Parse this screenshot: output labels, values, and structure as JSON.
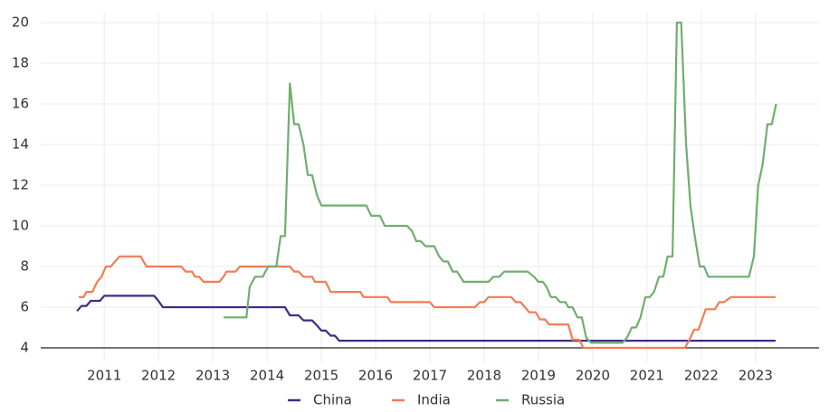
{
  "chart_data": {
    "type": "line",
    "xlim": [
      2010.33,
      2024.67
    ],
    "ylim": [
      3.3,
      20.5
    ],
    "yticks": [
      4,
      6,
      8,
      10,
      12,
      14,
      16,
      18,
      20
    ],
    "xticks": [
      {
        "value": 2011.5,
        "label": "2011"
      },
      {
        "value": 2012.5,
        "label": "2012"
      },
      {
        "value": 2013.5,
        "label": "2013"
      },
      {
        "value": 2014.5,
        "label": "2014"
      },
      {
        "value": 2015.5,
        "label": "2015"
      },
      {
        "value": 2016.5,
        "label": "2016"
      },
      {
        "value": 2017.5,
        "label": "2017"
      },
      {
        "value": 2018.5,
        "label": "2018"
      },
      {
        "value": 2019.5,
        "label": "2019"
      },
      {
        "value": 2020.5,
        "label": "2020"
      },
      {
        "value": 2021.5,
        "label": "2021"
      },
      {
        "value": 2022.5,
        "label": "2022"
      },
      {
        "value": 2023.5,
        "label": "2023"
      }
    ],
    "grid": true,
    "hline": 4,
    "legend": "bottom",
    "series": [
      {
        "name": "China",
        "color": "#3f2d85",
        "x": [
          2011.0,
          2011.08,
          2011.17,
          2011.25,
          2011.42,
          2011.5,
          2012.42,
          2012.5,
          2012.58,
          2014.83,
          2014.92,
          2015.08,
          2015.17,
          2015.33,
          2015.42,
          2015.5,
          2015.58,
          2015.67,
          2015.75,
          2015.83,
          2023.87
        ],
        "values": [
          5.81,
          6.06,
          6.06,
          6.31,
          6.31,
          6.56,
          6.56,
          6.31,
          6.0,
          6.0,
          5.6,
          5.6,
          5.35,
          5.35,
          5.1,
          4.85,
          4.85,
          4.6,
          4.6,
          4.35,
          4.35
        ]
      },
      {
        "name": "India",
        "color": "#f47c52",
        "x": [
          2011.03,
          2011.12,
          2011.17,
          2011.28,
          2011.37,
          2011.45,
          2011.53,
          2011.62,
          2011.7,
          2011.78,
          2012.17,
          2012.28,
          2012.92,
          2013.0,
          2013.12,
          2013.17,
          2013.25,
          2013.33,
          2013.62,
          2013.7,
          2013.75,
          2013.92,
          2014.0,
          2014.92,
          2015.0,
          2015.08,
          2015.17,
          2015.33,
          2015.38,
          2015.58,
          2015.67,
          2016.22,
          2016.28,
          2016.72,
          2016.78,
          2017.5,
          2017.58,
          2018.33,
          2018.42,
          2018.5,
          2018.58,
          2019.0,
          2019.08,
          2019.17,
          2019.25,
          2019.33,
          2019.45,
          2019.53,
          2019.62,
          2019.7,
          2020.05,
          2020.13,
          2020.25,
          2020.33,
          2022.2,
          2022.28,
          2022.37,
          2022.45,
          2022.58,
          2022.75,
          2022.83,
          2022.92,
          2023.05,
          2023.87
        ],
        "values": [
          6.5,
          6.5,
          6.75,
          6.75,
          7.25,
          7.5,
          8.0,
          8.0,
          8.25,
          8.5,
          8.5,
          8.0,
          8.0,
          7.75,
          7.75,
          7.5,
          7.5,
          7.25,
          7.25,
          7.5,
          7.75,
          7.75,
          8.0,
          8.0,
          7.75,
          7.75,
          7.5,
          7.5,
          7.25,
          7.25,
          6.75,
          6.75,
          6.5,
          6.5,
          6.25,
          6.25,
          6.0,
          6.0,
          6.25,
          6.25,
          6.5,
          6.5,
          6.25,
          6.25,
          6.0,
          5.75,
          5.75,
          5.4,
          5.4,
          5.15,
          5.15,
          4.4,
          4.4,
          4.0,
          4.0,
          4.4,
          4.9,
          4.9,
          5.9,
          5.9,
          6.25,
          6.25,
          6.5,
          6.5
        ]
      },
      {
        "name": "Russia",
        "color": "#6fae6f",
        "x": [
          2013.7,
          2014.12,
          2014.18,
          2014.28,
          2014.42,
          2014.52,
          2014.67,
          2014.75,
          2014.83,
          2014.92,
          2015.0,
          2015.08,
          2015.17,
          2015.25,
          2015.33,
          2015.42,
          2015.5,
          2016.33,
          2016.42,
          2016.58,
          2016.67,
          2017.08,
          2017.17,
          2017.25,
          2017.33,
          2017.42,
          2017.58,
          2017.67,
          2017.75,
          2017.83,
          2017.92,
          2018.0,
          2018.12,
          2018.58,
          2018.67,
          2018.78,
          2018.87,
          2019.3,
          2019.42,
          2019.5,
          2019.58,
          2019.65,
          2019.73,
          2019.82,
          2019.9,
          2020.0,
          2020.05,
          2020.13,
          2020.22,
          2020.3,
          2020.38,
          2020.47,
          2021.05,
          2021.13,
          2021.22,
          2021.3,
          2021.38,
          2021.47,
          2021.55,
          2021.63,
          2021.72,
          2021.8,
          2021.88,
          2021.97,
          2022.05,
          2022.13,
          2022.22,
          2022.3,
          2022.38,
          2022.47,
          2022.55,
          2022.63,
          2023.38,
          2023.47,
          2023.55,
          2023.63,
          2023.72,
          2023.8,
          2023.88
        ],
        "values": [
          5.5,
          5.5,
          7.0,
          7.5,
          7.5,
          8.0,
          8.0,
          9.5,
          9.5,
          17,
          15,
          15,
          14,
          12.5,
          12.5,
          11.5,
          11,
          11,
          10.5,
          10.5,
          10,
          10,
          9.75,
          9.25,
          9.25,
          9,
          9,
          8.5,
          8.25,
          8.25,
          7.75,
          7.75,
          7.25,
          7.25,
          7.5,
          7.5,
          7.75,
          7.75,
          7.5,
          7.25,
          7.25,
          7.0,
          6.5,
          6.5,
          6.25,
          6.25,
          6.0,
          6.0,
          5.5,
          5.5,
          4.5,
          4.25,
          4.25,
          4.5,
          5.0,
          5.0,
          5.5,
          6.5,
          6.5,
          6.75,
          7.5,
          7.5,
          8.5,
          8.5,
          20,
          20,
          14,
          11,
          9.5,
          8,
          8,
          7.5,
          7.5,
          8.5,
          12,
          13,
          15,
          15,
          16
        ]
      }
    ]
  }
}
